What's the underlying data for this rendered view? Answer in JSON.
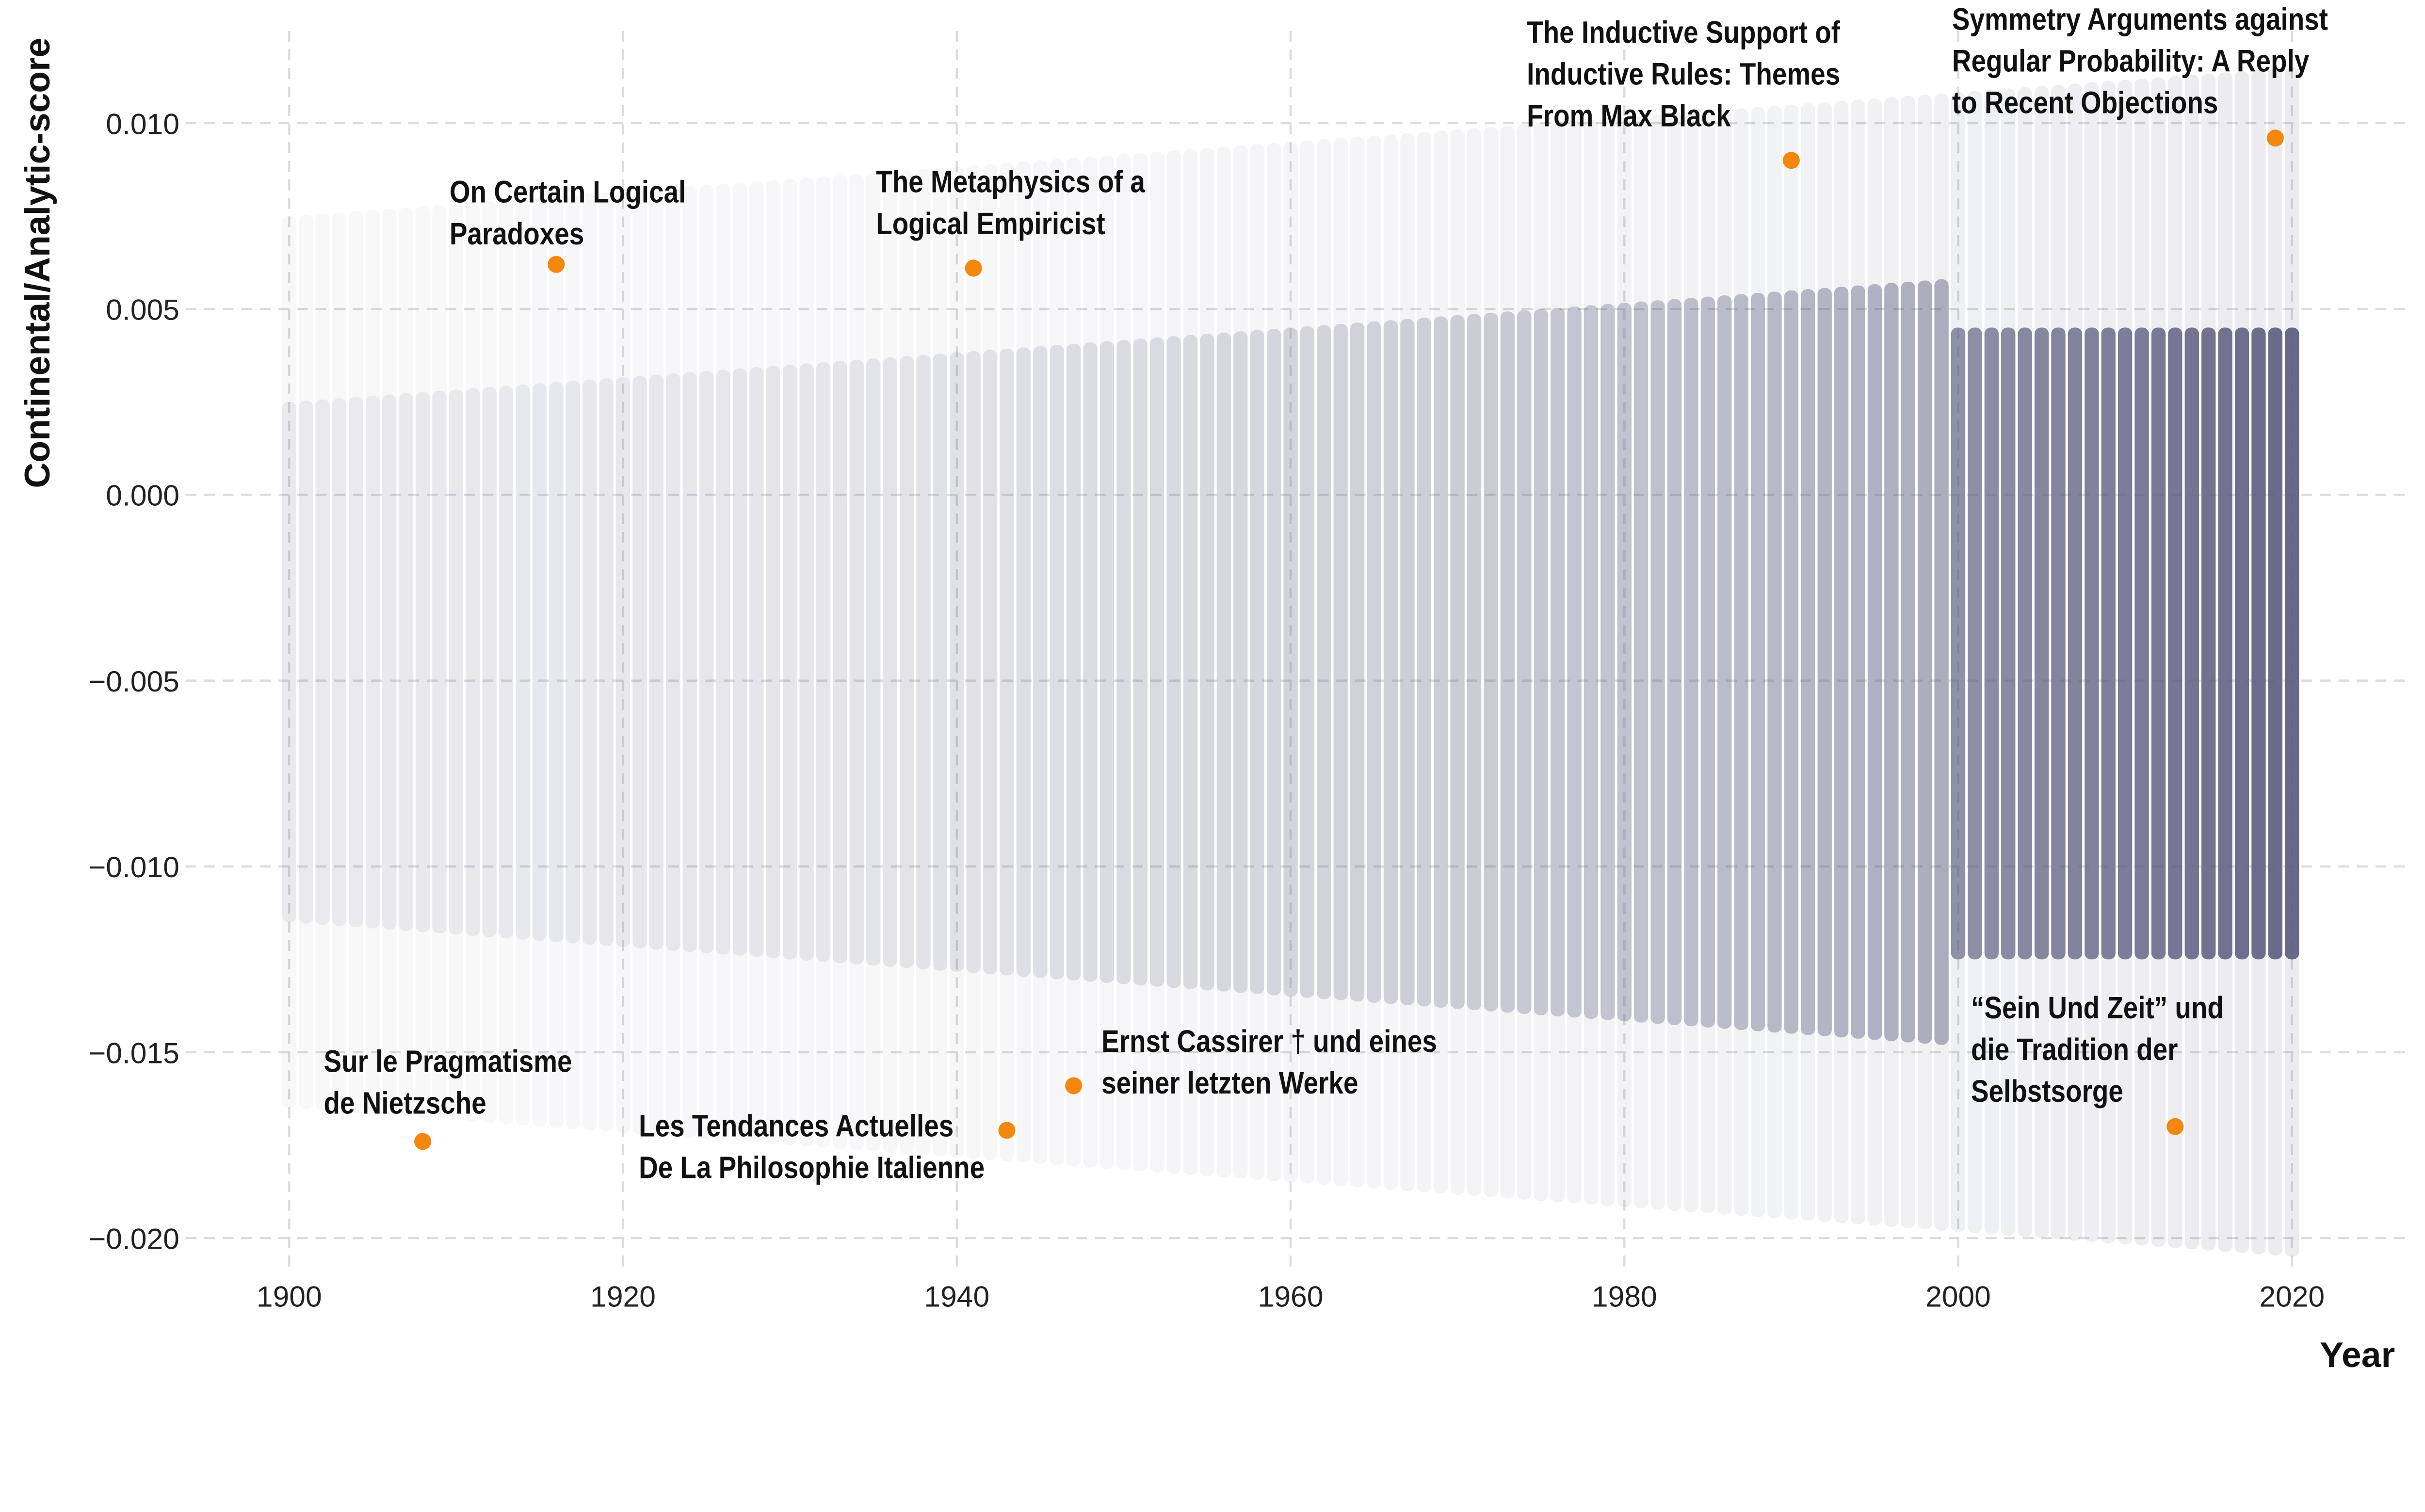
{
  "chart_data": {
    "type": "scatter",
    "xlabel": "Year",
    "ylabel": "Continental/Analytic-score",
    "xlim": [
      1895,
      2026
    ],
    "ylim": [
      -0.0205,
      0.0122
    ],
    "x_ticks": [
      "1900",
      "1920",
      "1940",
      "1960",
      "1980",
      "2000",
      "2020"
    ],
    "x_tick_values": [
      1900,
      1920,
      1940,
      1960,
      1980,
      2000,
      2020
    ],
    "y_ticks": [
      "0.010",
      "0.005",
      "0.000",
      "−0.005",
      "−0.010",
      "−0.015",
      "−0.020"
    ],
    "y_tick_values": [
      0.01,
      0.005,
      0.0,
      -0.005,
      -0.01,
      -0.015,
      -0.02
    ],
    "grid": true,
    "background_points": {
      "description_color": "#5a5c7e",
      "year_range": [
        1900,
        2020
      ]
    },
    "highlight_color": "#f5870f",
    "highlighted": [
      {
        "year": 1916,
        "score": 0.0062,
        "lines": [
          "On Certain Logical",
          "Paradoxes"
        ]
      },
      {
        "year": 1941,
        "score": 0.0061,
        "lines": [
          "The Metaphysics of a",
          "Logical Empiricist"
        ]
      },
      {
        "year": 1990,
        "score": 0.009,
        "lines": [
          "The Inductive Support of",
          "Inductive Rules: Themes",
          "From Max Black"
        ]
      },
      {
        "year": 2019,
        "score": 0.0096,
        "lines": [
          "Symmetry Arguments against",
          "Regular Probability: A Reply",
          "to Recent Objections"
        ]
      },
      {
        "year": 1908,
        "score": -0.0174,
        "lines": [
          "Sur le Pragmatisme",
          "de Nietzsche"
        ]
      },
      {
        "year": 1943,
        "score": -0.0171,
        "lines": [
          "Les Tendances Actuelles",
          "De La Philosophie Italienne"
        ]
      },
      {
        "year": 1947,
        "score": -0.0159,
        "lines": [
          "Ernst Cassirer †  und eines",
          "seiner letzten Werke"
        ]
      },
      {
        "year": 2013,
        "score": -0.017,
        "lines": [
          "“Sein Und Zeit” und",
          "die Tradition der",
          "Selbstsorge"
        ]
      }
    ]
  }
}
